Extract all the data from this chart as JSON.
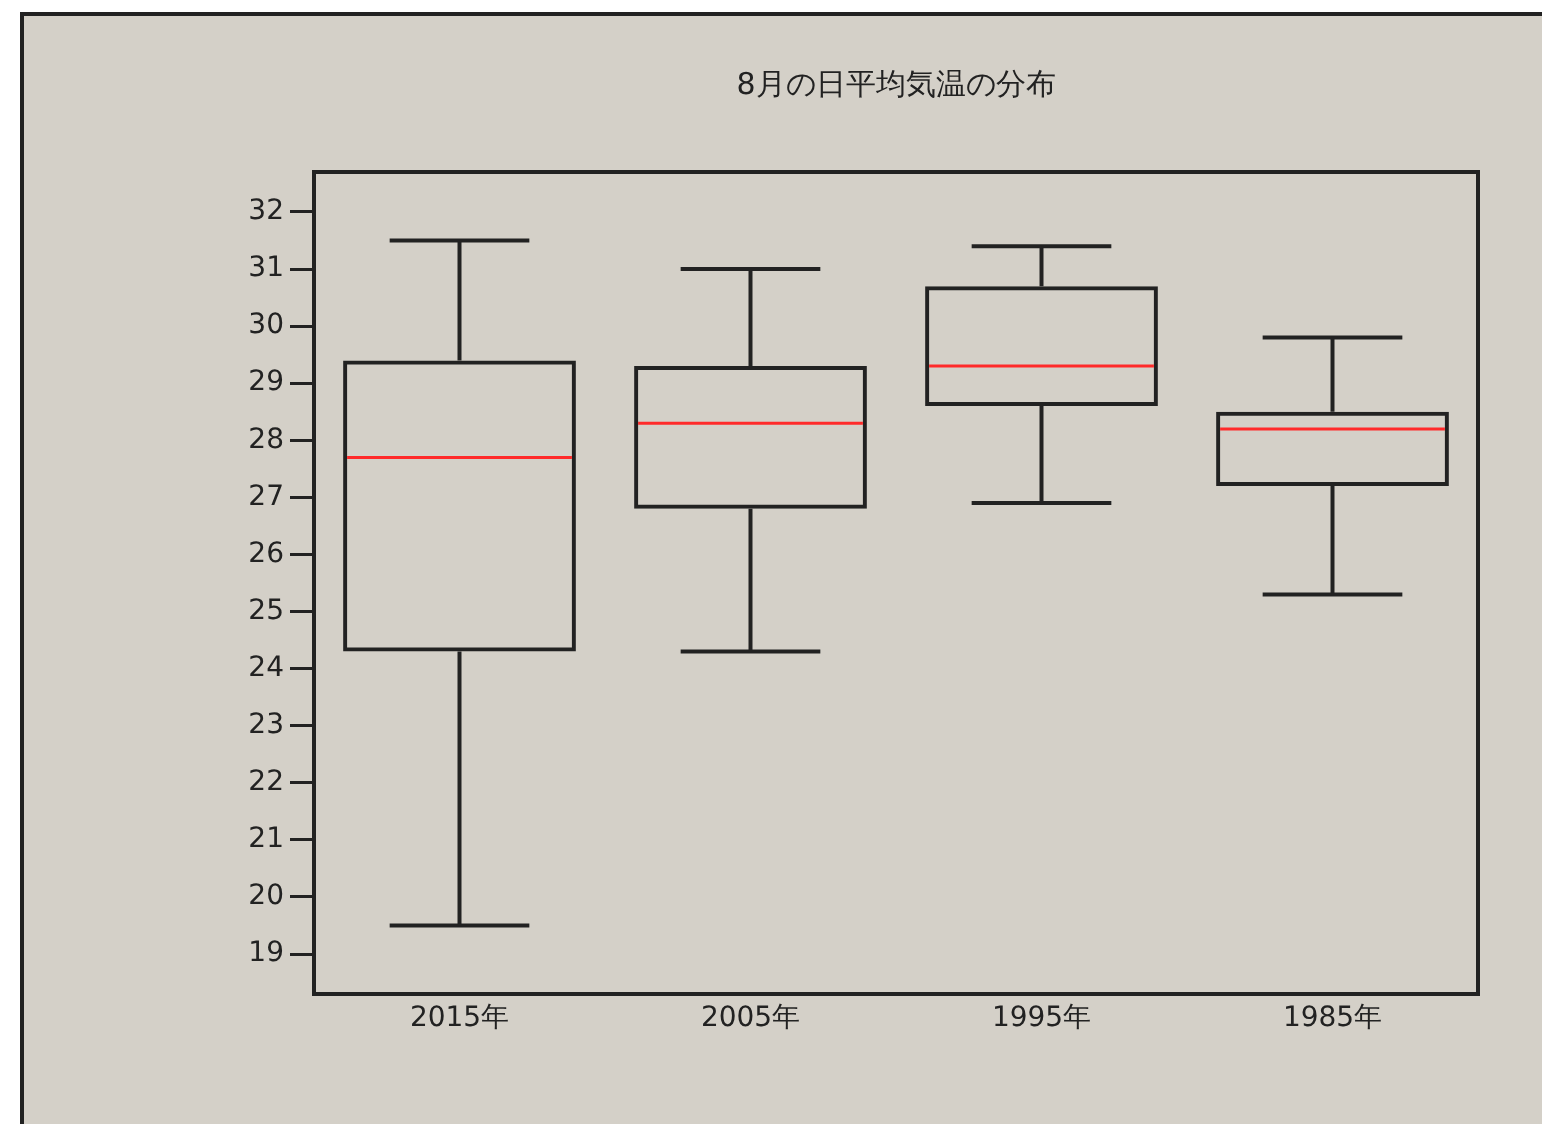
{
  "chart_data": {
    "type": "box",
    "title": "8月の日平均気温の分布",
    "categories": [
      "2015年",
      "2005年",
      "1995年",
      "1985年"
    ],
    "color": "#222222",
    "boxes": [
      {
        "low": 19.5,
        "q1": 24.3,
        "median": 27.7,
        "q3": 29.4,
        "high": 31.5
      },
      {
        "low": 24.3,
        "q1": 26.8,
        "median": 28.3,
        "q3": 29.3,
        "high": 31.0
      },
      {
        "low": 26.9,
        "q1": 28.6,
        "median": 29.3,
        "q3": 30.7,
        "high": 31.4
      },
      {
        "low": 25.3,
        "q1": 27.2,
        "median": 28.2,
        "q3": 28.5,
        "high": 29.8
      }
    ],
    "ylim": [
      18.3,
      32.7
    ],
    "yticks": [
      19,
      20,
      21,
      22,
      23,
      24,
      25,
      26,
      27,
      28,
      29,
      30,
      31,
      32
    ],
    "grid": false
  }
}
